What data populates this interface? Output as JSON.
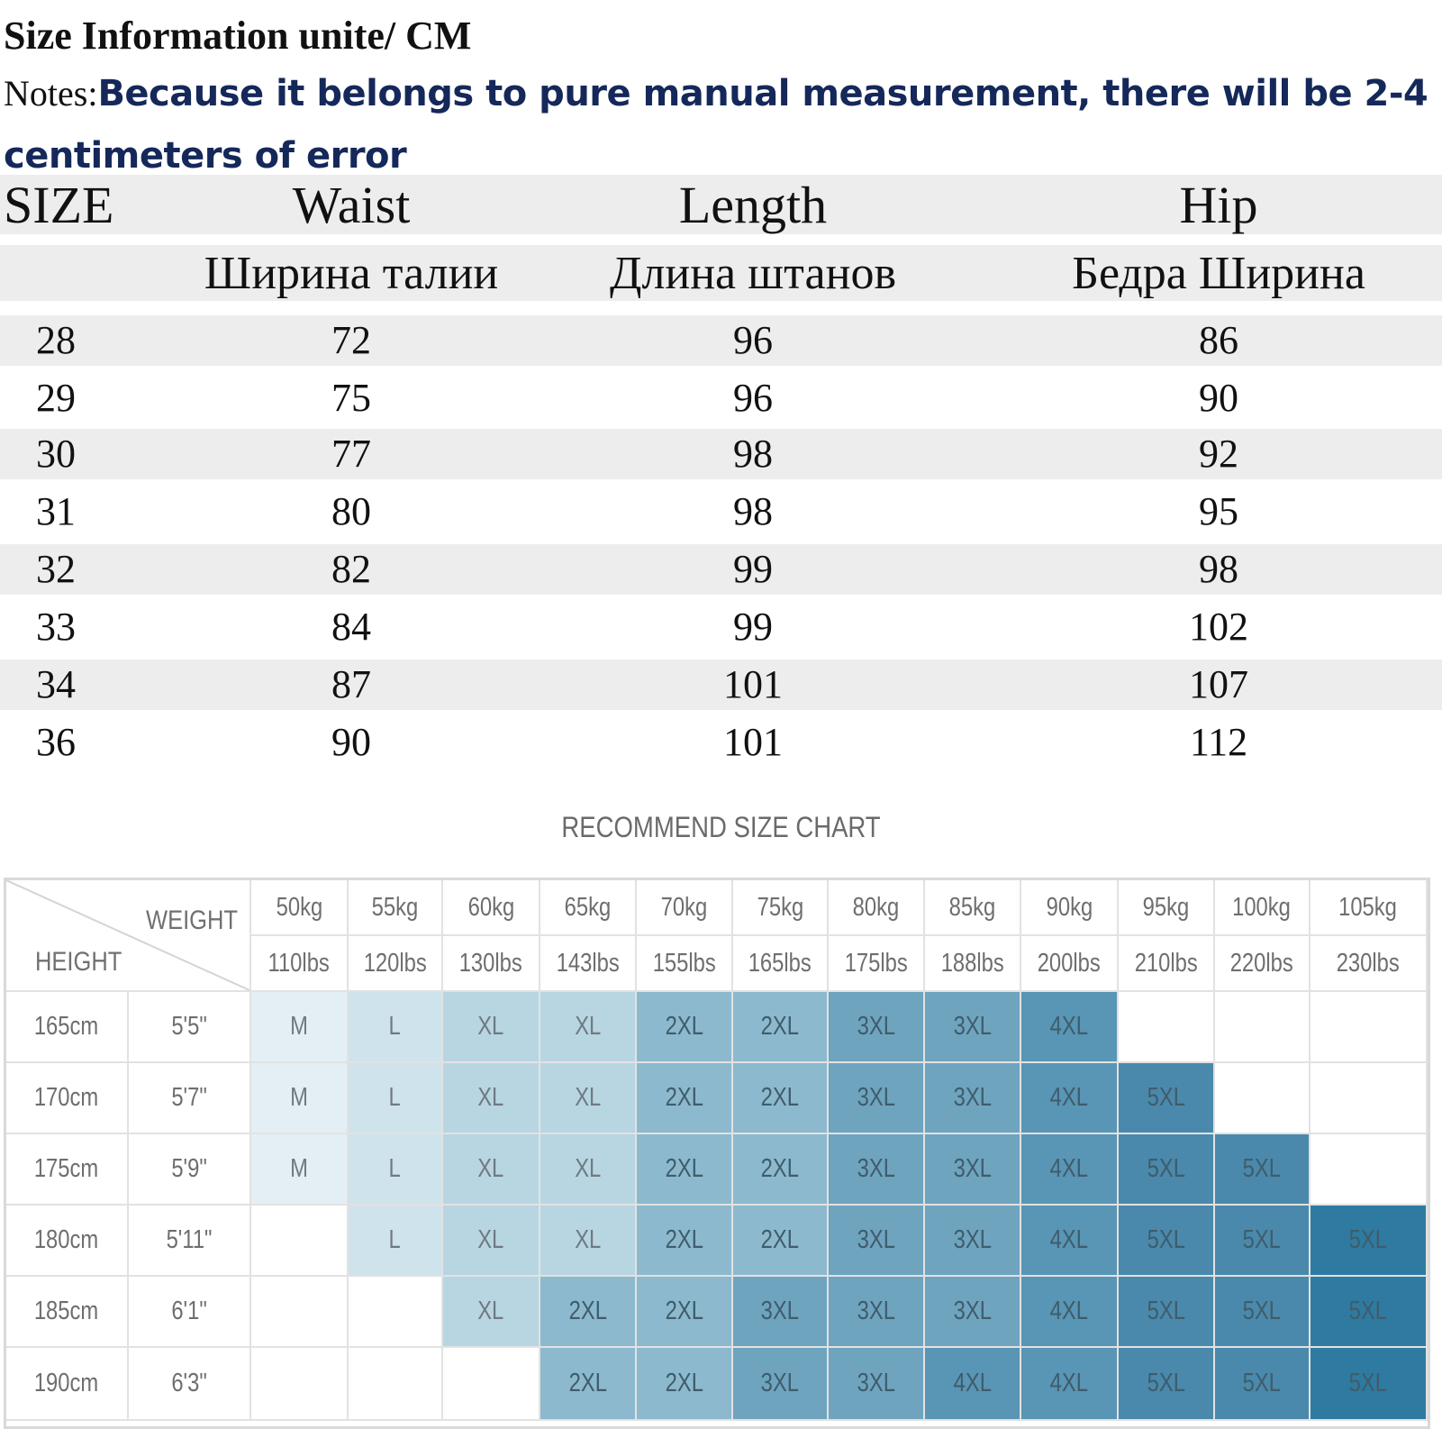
{
  "title": "Size Information unite/ CM",
  "notes": {
    "label": "Notes:",
    "text": "Because it belongs to pure manual measurement, there will be 2-4 centimeters of error"
  },
  "size_table": {
    "headers": [
      "SIZE",
      "Waist",
      "Length",
      "Hip"
    ],
    "headers_ru": [
      "",
      "Ширина талии",
      "Длина штанов",
      "Бедра Ширина"
    ],
    "rows": [
      [
        "28",
        "72",
        "96",
        "86"
      ],
      [
        "29",
        "75",
        "96",
        "90"
      ],
      [
        "30",
        "77",
        "98",
        "92"
      ],
      [
        "31",
        "80",
        "98",
        "95"
      ],
      [
        "32",
        "82",
        "99",
        "98"
      ],
      [
        "33",
        "84",
        "99",
        "102"
      ],
      [
        "34",
        "87",
        "101",
        "107"
      ],
      [
        "36",
        "90",
        "101",
        "112"
      ]
    ]
  },
  "recommend": {
    "title": "RECOMMEND SIZE CHART",
    "weight_label": "WEIGHT",
    "height_label": "HEIGHT",
    "weights_kg": [
      "50kg",
      "55kg",
      "60kg",
      "65kg",
      "70kg",
      "75kg",
      "80kg",
      "85kg",
      "90kg",
      "95kg",
      "100kg",
      "105kg"
    ],
    "weights_lbs": [
      "110lbs",
      "120lbs",
      "130lbs",
      "143lbs",
      "155lbs",
      "165lbs",
      "175lbs",
      "188lbs",
      "200lbs",
      "210lbs",
      "220lbs",
      "230lbs"
    ],
    "rows": [
      {
        "cm": "165cm",
        "ft": "5'5\"",
        "sizes": [
          "M",
          "L",
          "XL",
          "XL",
          "2XL",
          "2XL",
          "3XL",
          "3XL",
          "4XL",
          "",
          "",
          ""
        ]
      },
      {
        "cm": "170cm",
        "ft": "5'7\"",
        "sizes": [
          "M",
          "L",
          "XL",
          "XL",
          "2XL",
          "2XL",
          "3XL",
          "3XL",
          "4XL",
          "5XL",
          "",
          ""
        ]
      },
      {
        "cm": "175cm",
        "ft": "5'9\"",
        "sizes": [
          "M",
          "L",
          "XL",
          "XL",
          "2XL",
          "2XL",
          "3XL",
          "3XL",
          "4XL",
          "5XL",
          "5XL",
          ""
        ]
      },
      {
        "cm": "180cm",
        "ft": "5'11\"",
        "sizes": [
          "",
          "L",
          "XL",
          "XL",
          "2XL",
          "2XL",
          "3XL",
          "3XL",
          "4XL",
          "5XL",
          "5XL",
          "5XL"
        ]
      },
      {
        "cm": "185cm",
        "ft": "6'1\"",
        "sizes": [
          "",
          "",
          "XL",
          "2XL",
          "2XL",
          "3XL",
          "3XL",
          "3XL",
          "4XL",
          "5XL",
          "5XL",
          "5XL"
        ]
      },
      {
        "cm": "190cm",
        "ft": "6'3\"",
        "sizes": [
          "",
          "",
          "",
          "2XL",
          "2XL",
          "3XL",
          "3XL",
          "4XL",
          "4XL",
          "5XL",
          "5XL",
          "5XL"
        ]
      }
    ],
    "size_colors": {
      "M": "#e3eff4",
      "L": "#cfe3ec",
      "XL": "#b8d5e2",
      "2XL": "#8cb9ce",
      "3XL": "#6fa4bf",
      "4XL": "#5995b4",
      "5XL": "#4a89ab",
      "5XL_dark": "#2f7aa0"
    }
  }
}
